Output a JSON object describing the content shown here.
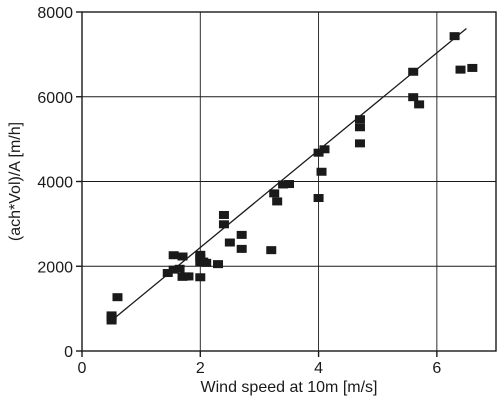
{
  "chart_data": {
    "type": "scatter",
    "xlabel": "Wind speed at 10m [m/s]",
    "ylabel": "(ach*Vol)/A [m/h]",
    "xlim": [
      0,
      7
    ],
    "ylim": [
      0,
      8000
    ],
    "xticks": [
      0,
      2,
      4,
      6
    ],
    "yticks": [
      0,
      2000,
      4000,
      6000,
      8000
    ],
    "x_tick_labels": [
      "0",
      "2",
      "4",
      "6"
    ],
    "y_tick_labels": [
      "0",
      "2000",
      "4000",
      "6000",
      "8000"
    ],
    "grid": true,
    "legend": "none",
    "colors": {
      "ink": "#1a1a1a",
      "background": "#ffffff"
    },
    "series": [
      {
        "marker": "square",
        "x": [
          0.5,
          0.5,
          0.5,
          0.6,
          1.45,
          1.55,
          1.55,
          1.65,
          1.7,
          1.7,
          1.75,
          1.8,
          2.0,
          2.0,
          2.0,
          2.0,
          2.05,
          2.1,
          2.3,
          2.4,
          2.4,
          2.5,
          2.7,
          2.7,
          3.2,
          3.25,
          3.3,
          3.4,
          3.5,
          4.0,
          4.0,
          4.05,
          4.1,
          4.7,
          4.7,
          4.7,
          5.6,
          5.6,
          5.7,
          6.3,
          6.4,
          6.6
        ],
        "y": [
          720,
          780,
          840,
          1270,
          1840,
          1920,
          2260,
          1940,
          2230,
          1750,
          1760,
          1760,
          1740,
          2090,
          2200,
          2270,
          2110,
          2080,
          2050,
          2990,
          3210,
          2560,
          2740,
          2410,
          2380,
          3720,
          3530,
          3930,
          3940,
          3610,
          4680,
          4230,
          4760,
          5280,
          5470,
          4900,
          6590,
          5990,
          5820,
          7430,
          6640,
          6680
        ]
      }
    ],
    "fit_line": {
      "type": "linear",
      "x": [
        0.5,
        6.5
      ],
      "y": [
        720,
        7610
      ]
    }
  }
}
